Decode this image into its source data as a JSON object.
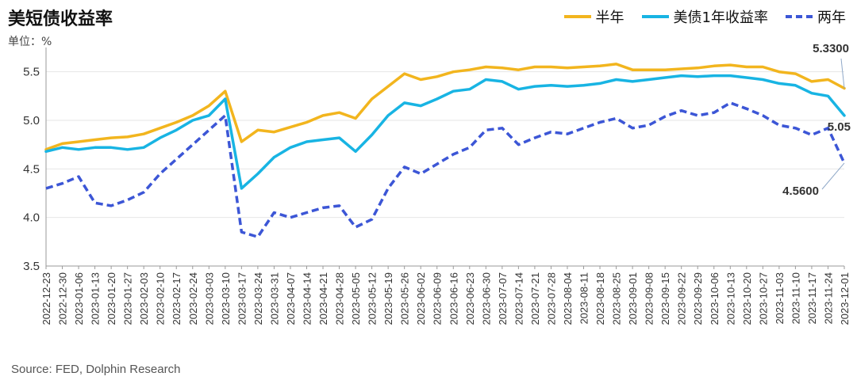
{
  "title": "美短债收益率",
  "unit": "单位：%",
  "source": "Source: FED, Dolphin Research",
  "colors": {
    "half_year": "#f2b51e",
    "one_year": "#18b4e3",
    "two_year": "#3c56d6",
    "grid": "#e6e6e6",
    "axis": "#9a9a9a"
  },
  "chart_data": {
    "type": "line",
    "ylim": [
      3.5,
      5.75
    ],
    "yticks": [
      3.5,
      4.0,
      4.5,
      5.0,
      5.5
    ],
    "grid": "horizontal",
    "legend": "top-right",
    "x_labels": [
      "2022-12-23",
      "2022-12-30",
      "2023-01-06",
      "2023-01-13",
      "2023-01-20",
      "2023-01-27",
      "2023-02-03",
      "2023-02-10",
      "2023-02-17",
      "2023-02-24",
      "2023-03-03",
      "2023-03-10",
      "2023-03-17",
      "2023-03-24",
      "2023-03-31",
      "2023-04-07",
      "2023-04-14",
      "2023-04-21",
      "2023-04-28",
      "2023-05-05",
      "2023-05-12",
      "2023-05-19",
      "2023-05-26",
      "2023-06-02",
      "2023-06-09",
      "2023-06-16",
      "2023-06-23",
      "2023-06-30",
      "2023-07-07",
      "2023-07-14",
      "2023-07-21",
      "2023-07-28",
      "2023-08-04",
      "2023-08-11",
      "2023-08-18",
      "2023-08-25",
      "2023-09-01",
      "2023-09-08",
      "2023-09-15",
      "2023-09-22",
      "2023-09-29",
      "2023-10-06",
      "2023-10-13",
      "2023-10-20",
      "2023-10-27",
      "2023-11-03",
      "2023-11-10",
      "2023-11-17",
      "2023-11-24",
      "2023-12-01"
    ],
    "series": [
      {
        "name": "半年",
        "key": "half_year",
        "style": "solid",
        "values": [
          4.7,
          4.76,
          4.78,
          4.8,
          4.82,
          4.83,
          4.86,
          4.92,
          4.98,
          5.05,
          5.15,
          5.3,
          4.78,
          4.9,
          4.88,
          4.93,
          4.98,
          5.05,
          5.08,
          5.02,
          5.22,
          5.35,
          5.48,
          5.42,
          5.45,
          5.5,
          5.52,
          5.55,
          5.54,
          5.52,
          5.55,
          5.55,
          5.54,
          5.55,
          5.56,
          5.58,
          5.52,
          5.52,
          5.52,
          5.53,
          5.54,
          5.56,
          5.57,
          5.55,
          5.55,
          5.5,
          5.48,
          5.4,
          5.42,
          5.33
        ],
        "end_label": "5.3300"
      },
      {
        "name": "美债1年收益率",
        "key": "one_year",
        "style": "solid",
        "values": [
          4.68,
          4.72,
          4.7,
          4.72,
          4.72,
          4.7,
          4.72,
          4.82,
          4.9,
          5.0,
          5.05,
          5.22,
          4.3,
          4.45,
          4.62,
          4.72,
          4.78,
          4.8,
          4.82,
          4.68,
          4.85,
          5.05,
          5.18,
          5.15,
          5.22,
          5.3,
          5.32,
          5.42,
          5.4,
          5.32,
          5.35,
          5.36,
          5.35,
          5.36,
          5.38,
          5.42,
          5.4,
          5.42,
          5.44,
          5.46,
          5.45,
          5.46,
          5.46,
          5.44,
          5.42,
          5.38,
          5.36,
          5.28,
          5.25,
          5.05
        ],
        "end_label": "5.05"
      },
      {
        "name": "两年",
        "key": "two_year",
        "style": "dashed",
        "values": [
          4.3,
          4.35,
          4.42,
          4.15,
          4.12,
          4.18,
          4.26,
          4.45,
          4.6,
          4.75,
          4.9,
          5.05,
          3.85,
          3.8,
          4.05,
          4.0,
          4.05,
          4.1,
          4.12,
          3.9,
          3.98,
          4.3,
          4.52,
          4.45,
          4.55,
          4.65,
          4.72,
          4.9,
          4.92,
          4.75,
          4.82,
          4.88,
          4.86,
          4.92,
          4.98,
          5.02,
          4.92,
          4.95,
          5.04,
          5.1,
          5.05,
          5.08,
          5.18,
          5.12,
          5.05,
          4.95,
          4.92,
          4.85,
          4.92,
          4.56
        ],
        "end_label": "4.5600"
      }
    ]
  }
}
